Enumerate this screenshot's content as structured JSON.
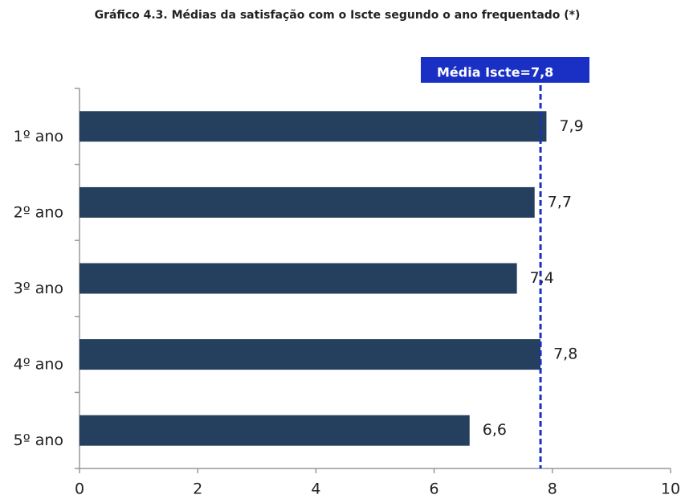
{
  "chart_data": {
    "type": "barh",
    "title": "Gráfico 4.3. Médias da satisfação com o Iscte segundo o ano frequentado (*)",
    "categories": [
      "1º ano",
      "2º ano",
      "3º ano",
      "4º ano",
      "5º ano"
    ],
    "values": [
      7.9,
      7.7,
      7.4,
      7.8,
      6.6
    ],
    "value_labels": [
      "7,9",
      "7,7",
      "7,4",
      "7,8",
      "6,6"
    ],
    "color": "#253f5e",
    "xlim": [
      0,
      10
    ],
    "xticks": [
      0,
      2,
      4,
      6,
      8,
      10
    ],
    "reference": {
      "value": 7.8,
      "label": "Média Iscte=7,8",
      "color": "#1a30c4"
    }
  }
}
